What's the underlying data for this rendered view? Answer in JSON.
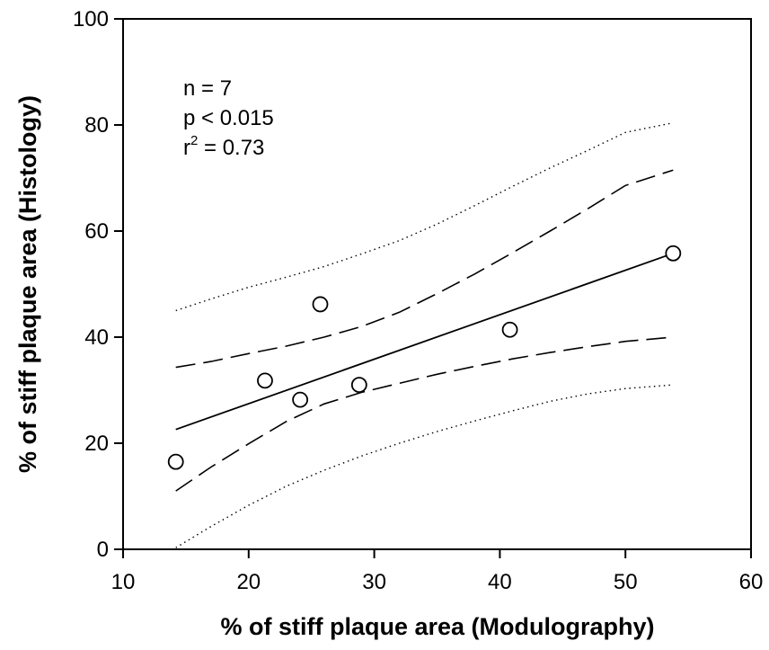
{
  "chart_data": {
    "type": "scatter",
    "title": "",
    "xlabel": "% of stiff plaque area (Modulography)",
    "ylabel": "% of stiff plaque area (Histology)",
    "xlim": [
      10,
      60
    ],
    "ylim": [
      0,
      100
    ],
    "x_ticks": [
      "10",
      "20",
      "30",
      "40",
      "50",
      "60"
    ],
    "y_ticks": [
      "0",
      "20",
      "40",
      "60",
      "80",
      "100"
    ],
    "grid": false,
    "legend": "none",
    "annotation": {
      "n": "n = 7",
      "p": "p < 0.015",
      "r_base": "r",
      "r_exp": "2",
      "r_rest": " = 0.73"
    },
    "points": [
      {
        "x": 14.2,
        "y": 16.5
      },
      {
        "x": 21.3,
        "y": 31.8
      },
      {
        "x": 24.1,
        "y": 28.2
      },
      {
        "x": 25.7,
        "y": 46.2
      },
      {
        "x": 28.8,
        "y": 31.0
      },
      {
        "x": 40.8,
        "y": 41.4
      },
      {
        "x": 53.8,
        "y": 55.8
      }
    ],
    "series": [
      {
        "style": "solid",
        "x": [
          14.2,
          53.8
        ],
        "y": [
          22.6,
          55.8
        ]
      },
      {
        "style": "dashed",
        "x": [
          14.2,
          17,
          20,
          23,
          26,
          29,
          32,
          35,
          38,
          41,
          44,
          47,
          50,
          53.8
        ],
        "y": [
          34.3,
          35.4,
          36.9,
          38.3,
          40.0,
          42.0,
          44.7,
          48.2,
          51.9,
          55.9,
          60.0,
          64.2,
          68.6,
          71.5
        ]
      },
      {
        "style": "dashed",
        "x": [
          14.2,
          17,
          20,
          23,
          26,
          29,
          32,
          35,
          38,
          41,
          44,
          47,
          50,
          53.8
        ],
        "y": [
          11.0,
          15.5,
          19.9,
          24.1,
          27.4,
          29.6,
          31.3,
          33.0,
          34.5,
          35.9,
          37.1,
          38.2,
          39.2,
          40.0
        ]
      },
      {
        "style": "dotted",
        "x": [
          14.2,
          17,
          20,
          23,
          26,
          29,
          32,
          35,
          38,
          41,
          44,
          47,
          50,
          53.8
        ],
        "y": [
          45.0,
          47.2,
          49.4,
          51.3,
          53.3,
          55.7,
          58.2,
          61.3,
          64.8,
          68.4,
          71.9,
          75.2,
          78.6,
          80.4
        ]
      },
      {
        "style": "dotted",
        "x": [
          14.2,
          17,
          20,
          23,
          26,
          29,
          32,
          35,
          38,
          41,
          44,
          47,
          50,
          53.8
        ],
        "y": [
          0.3,
          4.3,
          8.3,
          11.9,
          14.9,
          17.6,
          20.0,
          22.2,
          24.2,
          26.1,
          27.9,
          29.3,
          30.3,
          31.0
        ]
      }
    ]
  }
}
